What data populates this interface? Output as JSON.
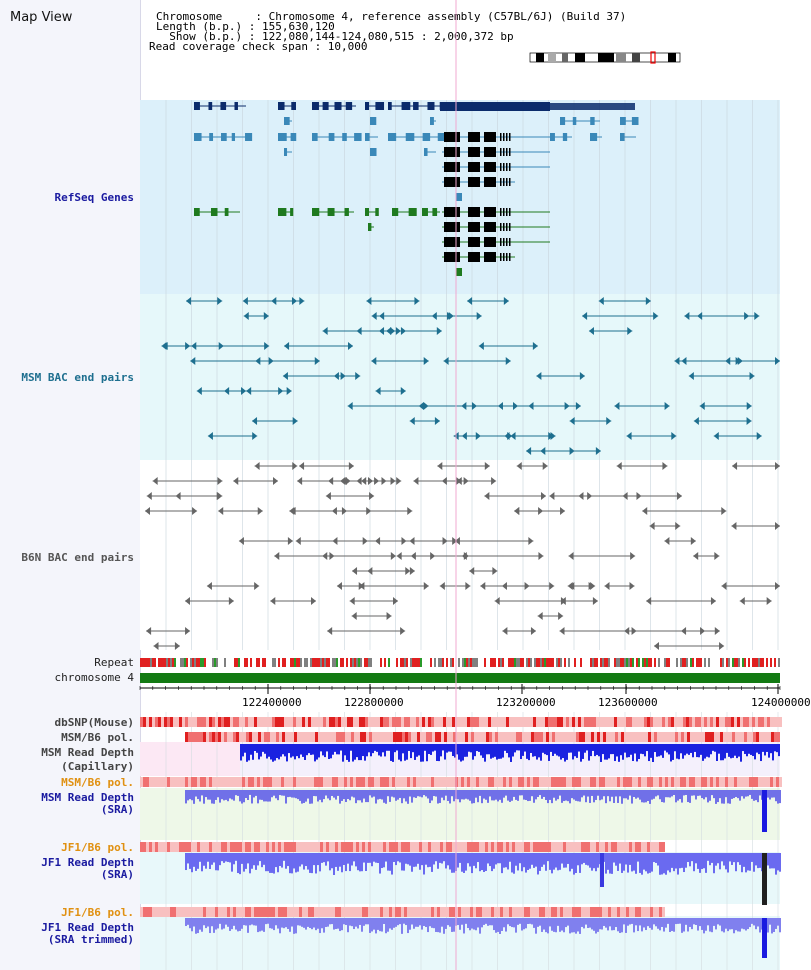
{
  "map_title": "Map View",
  "info": {
    "line1": "Chromosome     : Chromosome 4, reference assembly (C57BL/6J) (Build 37)",
    "line2": "Length (b.p.) : 155,630,120",
    "line3": "  Show (b.p.) : 122,080,144-124,080,515 : 2,000,372 bp",
    "line4": "Read coverage check span : 10,000"
  },
  "tracks": {
    "refseq": "RefSeq Genes",
    "msm_bac": "MSM BAC end pairs",
    "b6n_bac": "B6N BAC end pairs",
    "repeat": "Repeat",
    "chromosome": "chromosome 4",
    "dbsnp": "dbSNP(Mouse)",
    "msm_b6_pol_1": "MSM/B6 pol.",
    "msm_read_depth_cap_1": "MSM Read Depth",
    "msm_read_depth_cap_2": "(Capillary)",
    "msm_b6_pol_2": "MSM/B6 pol.",
    "msm_read_depth_sra_1": "MSM Read Depth",
    "msm_read_depth_sra_2": "(SRA)",
    "jf1_b6_pol_1": "JF1/B6 pol.",
    "jf1_read_depth_sra_1": "JF1 Read Depth",
    "jf1_read_depth_sra_2": "(SRA)",
    "jf1_b6_pol_2": "JF1/B6 pol.",
    "jf1_read_depth_trim_1": "JF1 Read Depth",
    "jf1_read_depth_trim_2": "(SRA trimmed)"
  },
  "axis": {
    "ticks": [
      "122400000",
      "122800000",
      "123200000",
      "123600000",
      "124000000"
    ]
  },
  "colors": {
    "refseq_dark": "#0b2b6b",
    "refseq_mid": "#3a88b8",
    "refseq_green": "#1f7a1f",
    "msm_bac": "#1e6f8f",
    "b6n_bac": "#666666",
    "chromosome": "#137a13",
    "label_blue": "#1a1aa0",
    "label_teal": "#1e6f8f",
    "label_orange": "#e09010"
  }
}
